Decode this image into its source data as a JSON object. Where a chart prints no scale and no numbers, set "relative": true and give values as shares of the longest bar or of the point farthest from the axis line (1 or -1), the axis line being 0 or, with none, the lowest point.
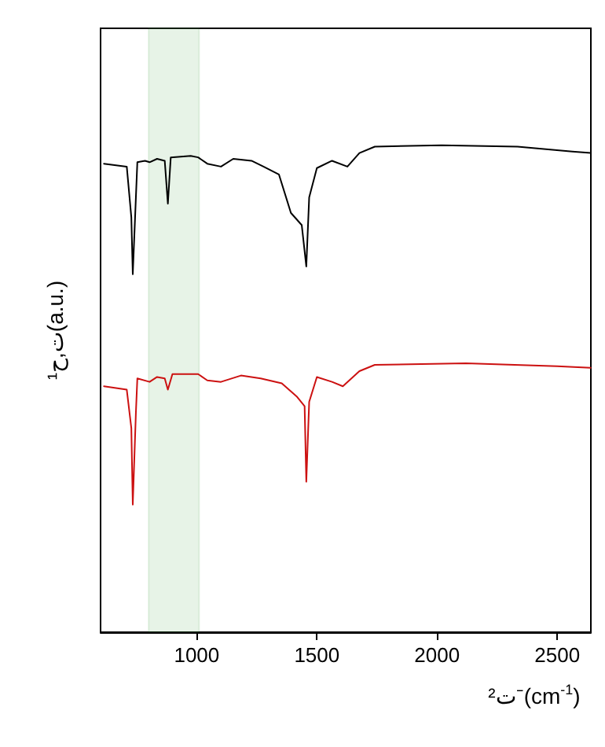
{
  "chart_data": {
    "type": "line",
    "relative": true,
    "xlabel": "ت²⁻(cm$^{-1}$)",
    "ylabel": "ت,ح¹(a.u.)",
    "xlim": [
      600,
      2640
    ],
    "xticks": [
      1000,
      1500,
      2000,
      2500
    ],
    "tick_labels": "x",
    "grid": false,
    "marker": "none",
    "line_style": "solid",
    "bands": [
      {
        "axis": "x",
        "from": 800,
        "to": 1010,
        "color": "#3a9a3a"
      }
    ],
    "series": [
      {
        "color": "#000000",
        "x": [
          614,
          709,
          728,
          734,
          747,
          753,
          785,
          804,
          835,
          867,
          880,
          892,
          975,
          1006,
          1044,
          1101,
          1152,
          1228,
          1278,
          1342,
          1392,
          1437,
          1456,
          1468,
          1500,
          1563,
          1627,
          1677,
          1741,
          2019,
          2335,
          2563,
          2639
        ],
        "values": [
          0.962,
          0.956,
          0.852,
          0.735,
          0.893,
          0.965,
          0.968,
          0.965,
          0.972,
          0.968,
          0.88,
          0.975,
          0.978,
          0.975,
          0.962,
          0.956,
          0.972,
          0.968,
          0.956,
          0.94,
          0.861,
          0.836,
          0.751,
          0.893,
          0.953,
          0.968,
          0.956,
          0.984,
          0.997,
          1.0,
          0.997,
          0.987,
          0.984
        ]
      },
      {
        "color": "#cc1111",
        "x": [
          614,
          709,
          728,
          734,
          747,
          753,
          804,
          835,
          867,
          880,
          899,
          1006,
          1044,
          1101,
          1184,
          1266,
          1354,
          1418,
          1449,
          1456,
          1468,
          1500,
          1563,
          1608,
          1677,
          1741,
          2120,
          2500,
          2639
        ],
        "values": [
          0.505,
          0.498,
          0.419,
          0.262,
          0.451,
          0.521,
          0.514,
          0.524,
          0.521,
          0.498,
          0.53,
          0.53,
          0.517,
          0.514,
          0.527,
          0.521,
          0.511,
          0.483,
          0.464,
          0.309,
          0.473,
          0.524,
          0.514,
          0.505,
          0.536,
          0.549,
          0.552,
          0.546,
          0.543
        ]
      }
    ]
  }
}
